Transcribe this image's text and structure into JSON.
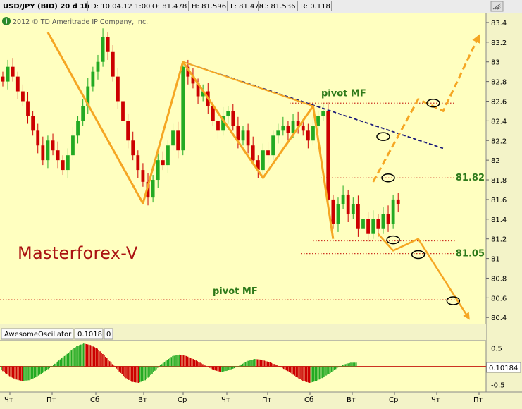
{
  "header": {
    "symbol": "USD/JPY (BID) 20 d 1h",
    "date": "D: 10.04.12 1:00",
    "open": "O: 81.478",
    "high": "H: 81.596",
    "low": "L: 81.478",
    "close": "C: 81.536",
    "range": "R: 0.118",
    "copyright": "2012 © TD Ameritrade IP Company, Inc."
  },
  "watermark": "Masterforex-V",
  "icons": {
    "info": "info-icon",
    "corner": "window-corner-icon"
  },
  "colors": {
    "background": "#ffffc0",
    "up_candle": "#22aa22",
    "down_candle": "#cc0000",
    "pattern": "#f5a623",
    "level_line": "#cc3322",
    "trendline": "#1a1a7a",
    "level_label": "#2d7a1a",
    "watermark": "#aa1111"
  },
  "chart_data": [
    {
      "type": "candlestick",
      "title": "USD/JPY (BID) 20 d 1h",
      "y_ticks": [
        "83.4",
        "83.2",
        "83",
        "82.8",
        "82.6",
        "82.4",
        "82.2",
        "82",
        "81.8",
        "81.6",
        "81.4",
        "81.2",
        "81",
        "80.8",
        "80.6",
        "80.4"
      ],
      "ylim": [
        80.33,
        83.5
      ],
      "x_ticks": [
        "Чт",
        "Пт",
        "Сб",
        "Вт",
        "Ср",
        "Чт",
        "Пт",
        "Сб",
        "Вт",
        "Ср",
        "Чт",
        "Пт"
      ],
      "closes": [
        82.8,
        82.95,
        82.85,
        82.7,
        82.6,
        82.45,
        82.3,
        82.15,
        82.0,
        82.2,
        82.1,
        82.0,
        81.9,
        82.05,
        82.25,
        82.4,
        82.55,
        82.75,
        82.9,
        83.0,
        83.25,
        83.1,
        82.85,
        82.6,
        82.4,
        82.2,
        82.05,
        81.9,
        81.78,
        81.62,
        81.8,
        82.0,
        81.95,
        82.15,
        82.3,
        82.1,
        82.95,
        82.85,
        82.78,
        82.65,
        82.7,
        82.55,
        82.4,
        82.3,
        82.45,
        82.5,
        82.35,
        82.2,
        82.3,
        82.15,
        82.0,
        81.9,
        82.1,
        82.05,
        82.25,
        82.3,
        82.35,
        82.28,
        82.4,
        82.35,
        82.3,
        82.2,
        82.35,
        82.45,
        82.5,
        81.6,
        81.35,
        81.55,
        81.65,
        81.45,
        81.55,
        81.3,
        81.4,
        81.25,
        81.4,
        81.3,
        81.45,
        81.35,
        81.6,
        81.55
      ],
      "patterns": [
        {
          "name": "zigzag",
          "points": [
            [
              9,
              83.3
            ],
            [
              28,
              81.56
            ],
            [
              36,
              83.0
            ],
            [
              52,
              81.82
            ],
            [
              62,
              82.55
            ],
            [
              66,
              81.2
            ]
          ]
        },
        {
          "name": "triangle",
          "points": [
            [
              36,
              83.0
            ],
            [
              52,
              81.82
            ],
            [
              62,
              82.55
            ],
            [
              36,
              83.0
            ]
          ]
        },
        {
          "name": "projection-up",
          "points": [
            [
              74,
              81.78
            ],
            [
              83,
              82.62
            ],
            [
              88,
              82.5
            ],
            [
              95,
              83.25
            ]
          ]
        },
        {
          "name": "projection-down",
          "points": [
            [
              75,
              81.25
            ],
            [
              78,
              81.08
            ],
            [
              83,
              81.2
            ],
            [
              93,
              80.4
            ]
          ]
        }
      ],
      "trendline": [
        [
          36,
          83.0
        ],
        [
          88,
          82.12
        ]
      ],
      "levels": [
        {
          "name": "pivot-upper",
          "value": 82.58,
          "label": "pivot MF"
        },
        {
          "name": "level-81.82",
          "value": 81.82,
          "label": "81.82"
        },
        {
          "name": "level-81.18",
          "value": 81.18
        },
        {
          "name": "level-81.05",
          "value": 81.05,
          "label": "81.05"
        },
        {
          "name": "pivot-lower",
          "value": 80.58,
          "label": "pivot MF"
        }
      ],
      "markers": [
        [
          86,
          82.58
        ],
        [
          77,
          81.82
        ],
        [
          78,
          81.19
        ],
        [
          83,
          81.04
        ],
        [
          90,
          80.57
        ]
      ],
      "marker_label": "82.24"
    },
    {
      "type": "bar",
      "title": "AwesomeOscillator",
      "indicator_value": "0.1018",
      "indicator_param": "0",
      "last_value": "0.10184",
      "y_ticks": [
        "0.5",
        "-0.5"
      ],
      "ylim": [
        -0.7,
        0.7
      ],
      "values": [
        -0.1,
        -0.25,
        -0.35,
        -0.4,
        -0.38,
        -0.3,
        -0.18,
        -0.05,
        0.1,
        0.25,
        0.4,
        0.55,
        0.62,
        0.58,
        0.48,
        0.3,
        0.1,
        -0.1,
        -0.3,
        -0.42,
        -0.45,
        -0.38,
        -0.2,
        0.0,
        0.15,
        0.28,
        0.32,
        0.28,
        0.2,
        0.1,
        0.0,
        -0.1,
        -0.15,
        -0.12,
        -0.05,
        0.05,
        0.15,
        0.2,
        0.18,
        0.12,
        0.05,
        -0.05,
        -0.15,
        -0.28,
        -0.4,
        -0.45,
        -0.4,
        -0.3,
        -0.18,
        -0.05,
        0.05,
        0.1
      ]
    }
  ]
}
